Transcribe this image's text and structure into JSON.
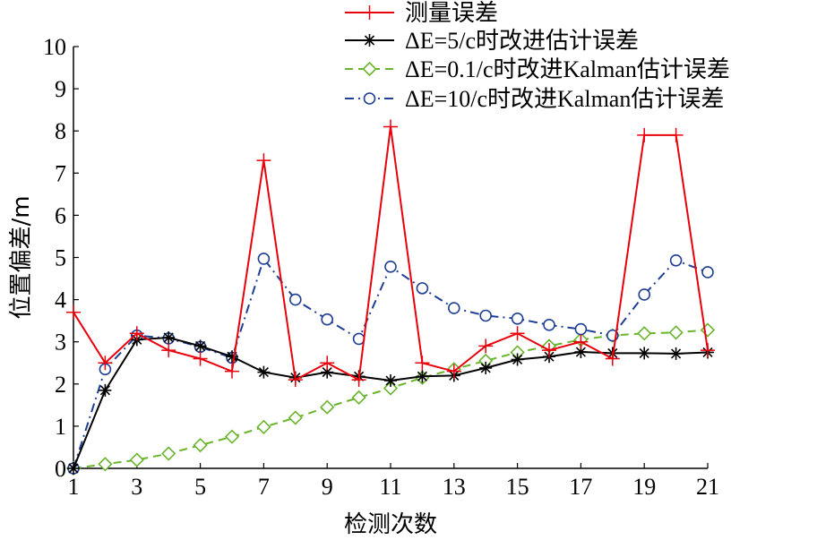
{
  "chart_data": {
    "type": "line",
    "xlabel": "检测次数",
    "ylabel": "位置偏差/m",
    "xlim": [
      1,
      21
    ],
    "ylim": [
      0,
      10
    ],
    "xticks": [
      1,
      3,
      5,
      7,
      9,
      11,
      13,
      15,
      17,
      19,
      21
    ],
    "yticks": [
      0,
      1,
      2,
      3,
      4,
      5,
      6,
      7,
      8,
      9,
      10
    ],
    "grid": false,
    "legend_position": "top-right",
    "x": [
      1,
      2,
      3,
      4,
      5,
      6,
      7,
      8,
      9,
      10,
      11,
      12,
      13,
      14,
      15,
      16,
      17,
      18,
      19,
      20,
      21
    ],
    "series": [
      {
        "name": "测量误差",
        "color": "#e8000b",
        "marker": "plus",
        "dash": "solid",
        "values": [
          3.7,
          2.5,
          3.2,
          2.8,
          2.6,
          2.3,
          7.3,
          2.1,
          2.5,
          2.1,
          8.1,
          2.5,
          2.3,
          2.9,
          3.2,
          2.8,
          3.0,
          2.6,
          7.9,
          7.9,
          2.8
        ]
      },
      {
        "name": "ΔE=5/c时改进估计误差",
        "color": "#000000",
        "marker": "star",
        "dash": "solid",
        "values": [
          0,
          1.85,
          3.05,
          3.1,
          2.9,
          2.65,
          2.28,
          2.15,
          2.28,
          2.18,
          2.08,
          2.18,
          2.2,
          2.38,
          2.58,
          2.65,
          2.76,
          2.73,
          2.73,
          2.72,
          2.75
        ]
      },
      {
        "name": "ΔE=0.1/c时改进Kalman估计误差",
        "color": "#6ab42d",
        "marker": "diamond",
        "dash": "dashed",
        "values": [
          0,
          0.1,
          0.2,
          0.35,
          0.55,
          0.75,
          0.98,
          1.2,
          1.45,
          1.68,
          1.9,
          2.15,
          2.35,
          2.55,
          2.75,
          2.9,
          3.05,
          3.15,
          3.2,
          3.22,
          3.28
        ]
      },
      {
        "name": "ΔE=10/c时改进Kalman估计误差",
        "color": "#1f3f93",
        "marker": "circle",
        "dash": "dashdot",
        "values": [
          0,
          2.35,
          3.15,
          3.08,
          2.88,
          2.62,
          4.97,
          4.0,
          3.53,
          3.07,
          4.78,
          4.27,
          3.8,
          3.62,
          3.55,
          3.4,
          3.3,
          3.15,
          4.12,
          4.93,
          4.65
        ]
      }
    ]
  }
}
